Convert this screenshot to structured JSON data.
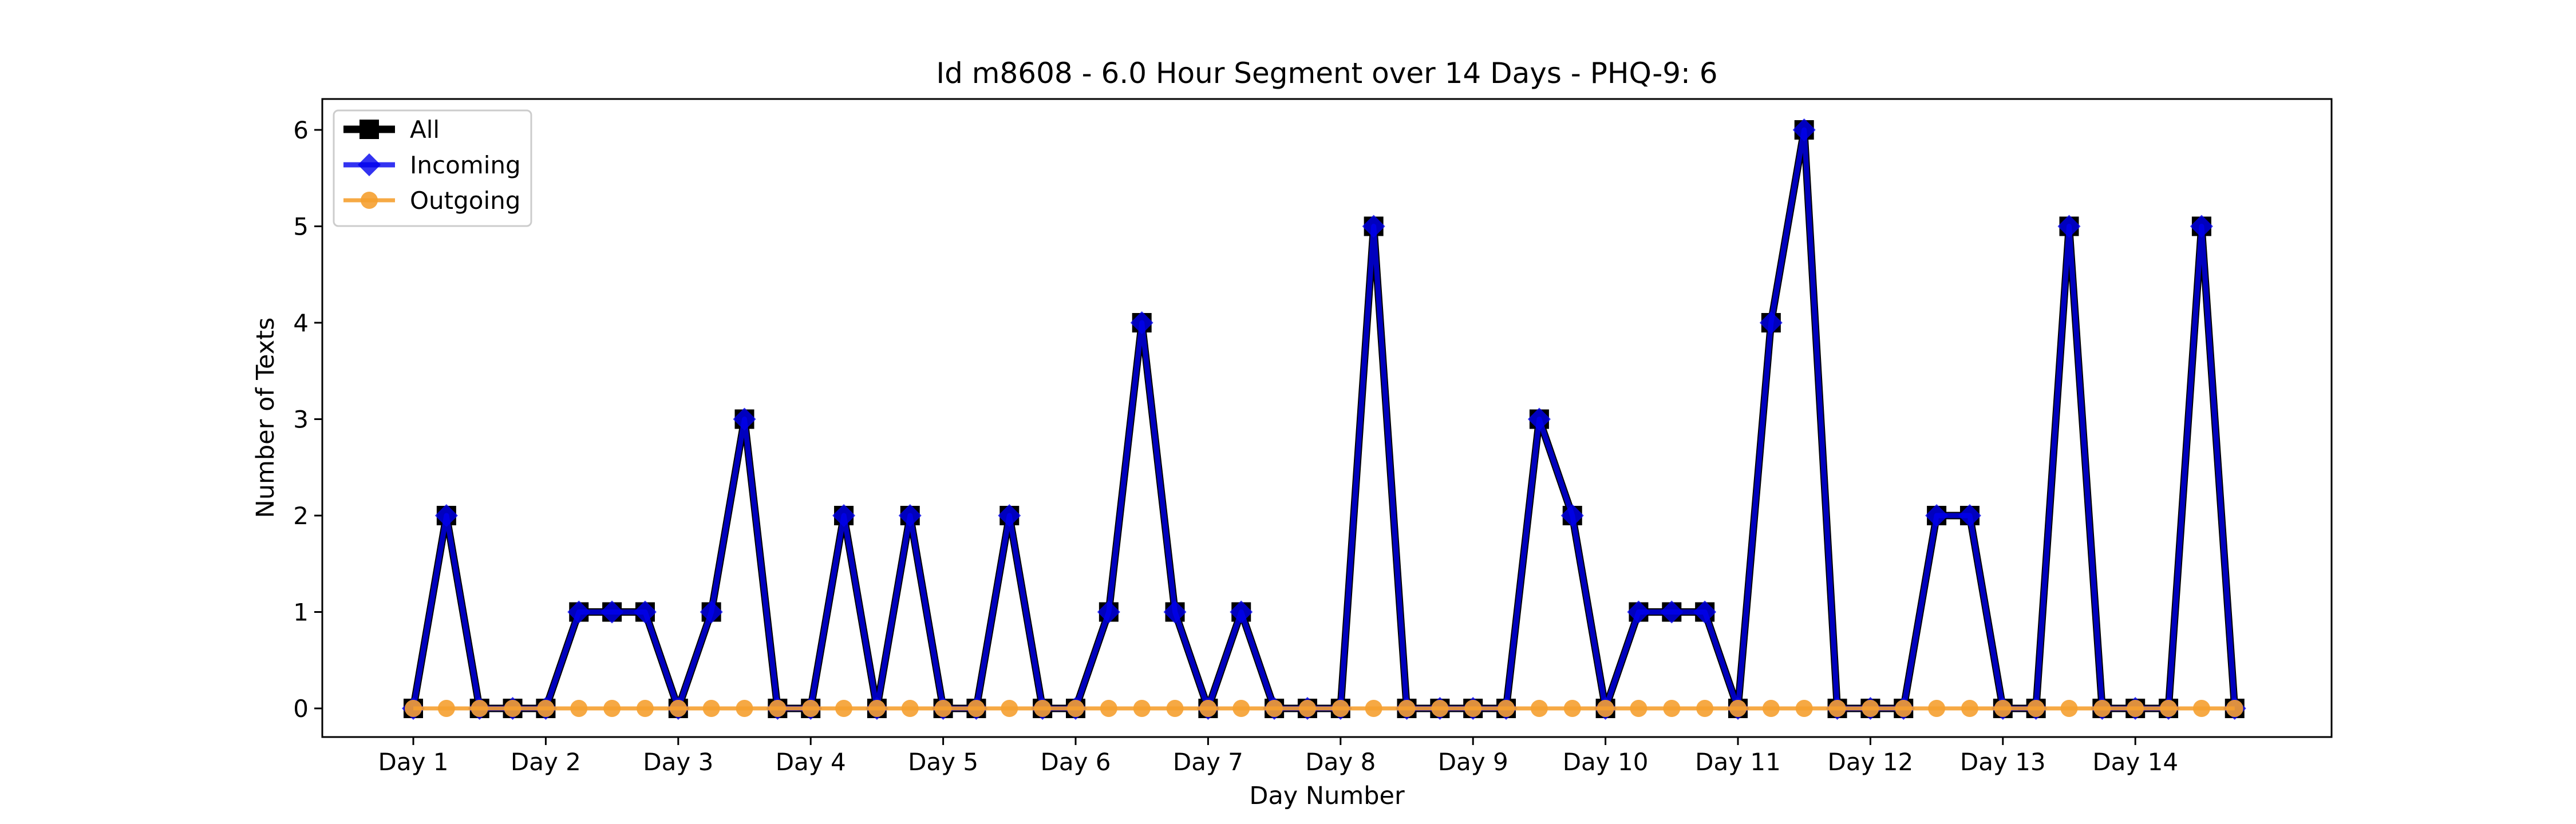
{
  "chart_data": {
    "type": "line",
    "title": "Id m8608 - 6.0 Hour Segment over 14 Days - PHQ-9: 6",
    "xlabel": "Day Number",
    "ylabel": "Number of Texts",
    "x_tick_labels": [
      "Day 1",
      "Day 2",
      "Day 3",
      "Day 4",
      "Day 5",
      "Day 6",
      "Day 7",
      "Day 8",
      "Day 9",
      "Day 10",
      "Day 11",
      "Day 12",
      "Day 13",
      "Day 14"
    ],
    "y_ticks": [
      0,
      1,
      2,
      3,
      4,
      5,
      6
    ],
    "ylim": [
      -0.3,
      6.3
    ],
    "points_per_day": 4,
    "grid": false,
    "legend_position": "upper-left",
    "series": [
      {
        "name": "All",
        "color": "#000000",
        "marker": "square",
        "values": [
          0,
          2,
          0,
          0,
          0,
          1,
          1,
          1,
          0,
          1,
          3,
          0,
          0,
          2,
          0,
          2,
          0,
          0,
          2,
          0,
          0,
          1,
          4,
          1,
          0,
          1,
          0,
          0,
          0,
          5,
          0,
          0,
          0,
          0,
          3,
          2,
          0,
          1,
          1,
          1,
          0,
          4,
          6,
          0,
          0,
          0,
          2,
          2,
          0,
          0,
          5,
          0,
          0,
          0,
          5,
          0
        ]
      },
      {
        "name": "Incoming",
        "color": "#0000ee",
        "marker": "diamond",
        "values": [
          0,
          2,
          0,
          0,
          0,
          1,
          1,
          1,
          0,
          1,
          3,
          0,
          0,
          2,
          0,
          2,
          0,
          0,
          2,
          0,
          0,
          1,
          4,
          1,
          0,
          1,
          0,
          0,
          0,
          5,
          0,
          0,
          0,
          0,
          3,
          2,
          0,
          1,
          1,
          1,
          0,
          4,
          6,
          0,
          0,
          0,
          2,
          2,
          0,
          0,
          5,
          0,
          0,
          0,
          5,
          0
        ]
      },
      {
        "name": "Outgoing",
        "color": "#f5a030",
        "marker": "circle",
        "values": [
          0,
          0,
          0,
          0,
          0,
          0,
          0,
          0,
          0,
          0,
          0,
          0,
          0,
          0,
          0,
          0,
          0,
          0,
          0,
          0,
          0,
          0,
          0,
          0,
          0,
          0,
          0,
          0,
          0,
          0,
          0,
          0,
          0,
          0,
          0,
          0,
          0,
          0,
          0,
          0,
          0,
          0,
          0,
          0,
          0,
          0,
          0,
          0,
          0,
          0,
          0,
          0,
          0,
          0,
          0,
          0
        ]
      }
    ]
  }
}
